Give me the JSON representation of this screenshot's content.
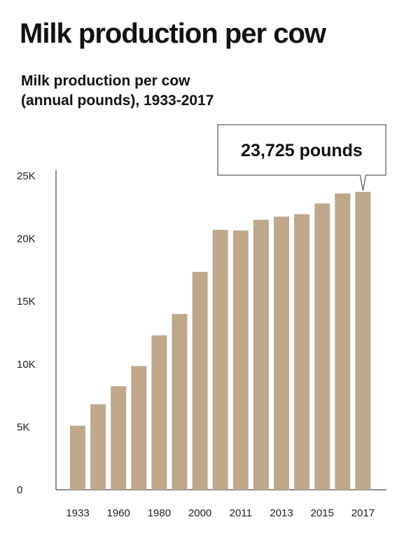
{
  "header": {
    "title": "Milk production per cow"
  },
  "chart_data": {
    "type": "bar",
    "title": "Milk production per cow",
    "subtitle_lines": [
      "Milk production per cow",
      "(annual pounds), 1933-2017"
    ],
    "xlabel": "",
    "ylabel": "",
    "ylim": [
      0,
      25000
    ],
    "yticks": [
      0,
      5000,
      10000,
      15000,
      20000,
      25000
    ],
    "ytick_labels": [
      "0",
      "5K",
      "10K",
      "15K",
      "20K",
      "25K"
    ],
    "grid": false,
    "bar_color": "#bea889",
    "values": [
      5100,
      6800,
      8250,
      9850,
      12300,
      14000,
      17350,
      20700,
      20650,
      21500,
      21750,
      21950,
      22800,
      23600,
      23725
    ],
    "xtick_labels": [
      {
        "index": 0,
        "label": "1933"
      },
      {
        "index": 2,
        "label": "1960"
      },
      {
        "index": 4,
        "label": "1980"
      },
      {
        "index": 6,
        "label": "2000"
      },
      {
        "index": 8,
        "label": "2011"
      },
      {
        "index": 10,
        "label": "2013"
      },
      {
        "index": 12,
        "label": "2015"
      },
      {
        "index": 14,
        "label": "2017"
      }
    ],
    "annotation": {
      "index": 14,
      "text": "23,725 pounds"
    }
  }
}
